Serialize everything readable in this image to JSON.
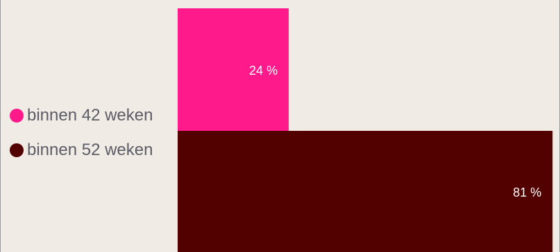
{
  "chart_data": {
    "type": "bar",
    "orientation": "horizontal",
    "xlim": [
      0,
      100
    ],
    "series": [
      {
        "name": "binnen 42 weken",
        "value": 24,
        "data_label": "24 %",
        "color": "#ff1a8c"
      },
      {
        "name": "binnen 52 weken",
        "value": 81,
        "data_label": "81 %",
        "color": "#530000"
      }
    ],
    "legend_position": "left",
    "grid": false
  }
}
